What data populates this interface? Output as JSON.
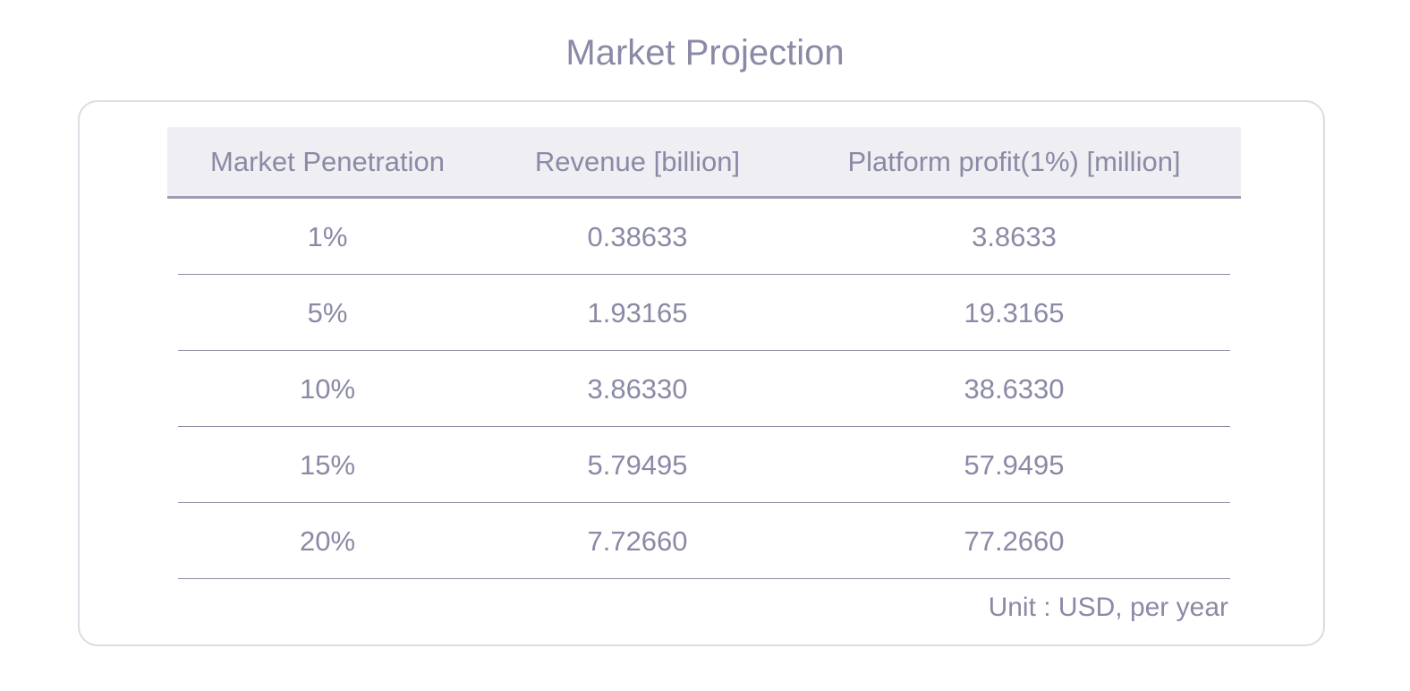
{
  "title": "Market Projection",
  "chart_data": {
    "type": "table",
    "title": "Market Projection",
    "columns": [
      "Market Penetration",
      "Revenue [billion]",
      "Platform profit(1%) [million]"
    ],
    "rows": [
      [
        "1%",
        "0.38633",
        "3.8633"
      ],
      [
        "5%",
        "1.93165",
        "19.3165"
      ],
      [
        "10%",
        "3.86330",
        "38.6330"
      ],
      [
        "15%",
        "5.79495",
        "57.9495"
      ],
      [
        "20%",
        "7.72660",
        "77.2660"
      ]
    ],
    "note": "Unit : USD, per year"
  },
  "colors": {
    "text": "#8a8aa6",
    "header_bg": "#eeeef3",
    "border": "#dcdce4",
    "rule": "#8c8ca4"
  }
}
